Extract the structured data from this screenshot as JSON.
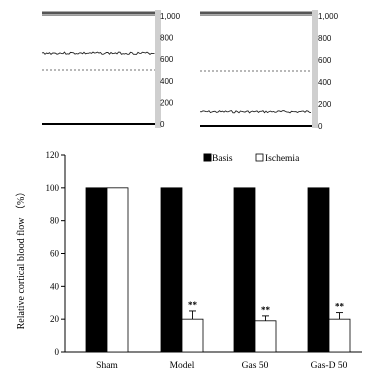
{
  "recordings": [
    {
      "ticks": [
        "1,000",
        "800",
        "600",
        "400",
        "200",
        "0"
      ],
      "tick_values": [
        1000,
        800,
        600,
        400,
        200,
        0
      ],
      "trace_level": 655,
      "dashed_level": 500
    },
    {
      "ticks": [
        "1,000",
        "800",
        "600",
        "400",
        "200",
        "0"
      ],
      "tick_values": [
        1000,
        800,
        600,
        400,
        200,
        0
      ],
      "trace_level": 130,
      "dashed_level": 500
    }
  ],
  "chart_data": {
    "type": "bar",
    "categories": [
      "Sham",
      "Model",
      "Gas 50",
      "Gas-D 50"
    ],
    "series": [
      {
        "name": "Basis",
        "values": [
          100,
          100,
          100,
          100
        ],
        "color": "#000000"
      },
      {
        "name": "Ischemia",
        "values": [
          100,
          20,
          19,
          20
        ],
        "color": "#ffffff"
      }
    ],
    "errors": [
      0,
      5,
      3,
      4
    ],
    "significance": [
      "",
      "**",
      "**",
      "**"
    ],
    "ylabel": "Relative cortical blood flow （%）",
    "ylim": [
      0,
      120
    ],
    "yticks": [
      "0",
      "20",
      "40",
      "60",
      "80",
      "100",
      "120"
    ],
    "grid": false,
    "legend_position": "top-right"
  }
}
